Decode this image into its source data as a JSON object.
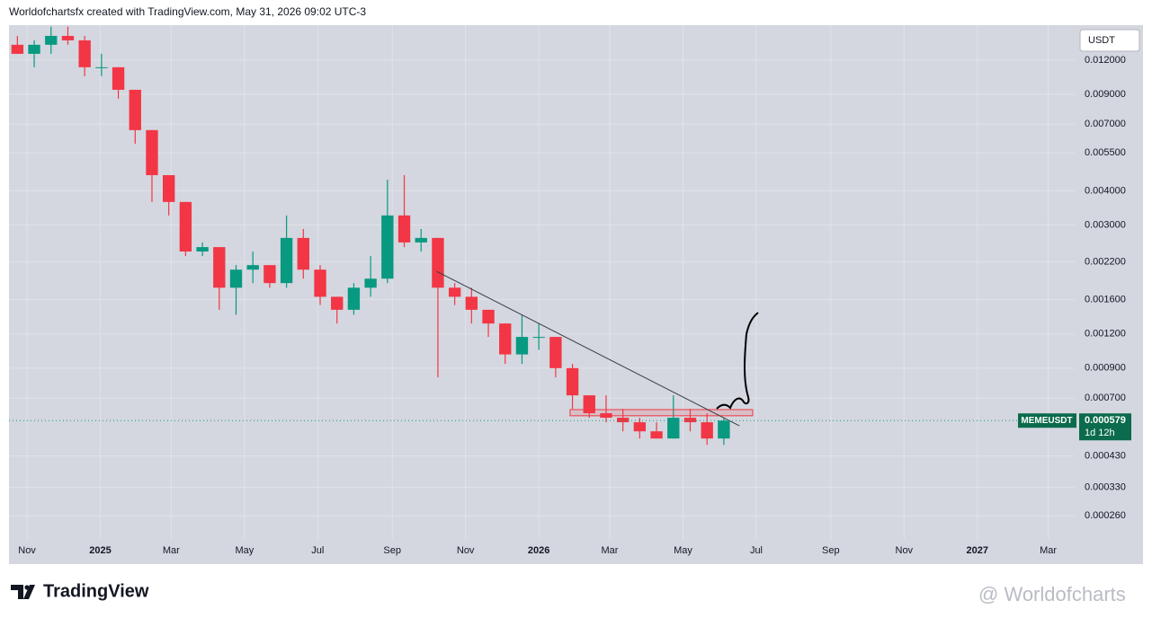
{
  "header": {
    "credit": "Worldofchartsfx created with TradingView.com, May 31, 2026 09:02 UTC-3"
  },
  "footer": {
    "brand": "TradingView",
    "watermark": "@ Worldofcharts"
  },
  "chart_data": {
    "type": "candlestick",
    "log_scale": true,
    "grid": true,
    "currency": "USDT",
    "up_color": "#089981",
    "down_color": "#f23645",
    "xlim": [
      "2024-10-17",
      "2027-03-23"
    ],
    "xticks": [
      {
        "value": "2024-11-01",
        "label": "Nov"
      },
      {
        "value": "2025-01-01",
        "label": "2025"
      },
      {
        "value": "2025-03-01",
        "label": "Mar"
      },
      {
        "value": "2025-05-01",
        "label": "May"
      },
      {
        "value": "2025-07-01",
        "label": "Jul"
      },
      {
        "value": "2025-09-01",
        "label": "Sep"
      },
      {
        "value": "2025-11-01",
        "label": "Nov"
      },
      {
        "value": "2026-01-01",
        "label": "2026"
      },
      {
        "value": "2026-03-01",
        "label": "Mar"
      },
      {
        "value": "2026-05-01",
        "label": "May"
      },
      {
        "value": "2026-07-01",
        "label": "Jul"
      },
      {
        "value": "2026-09-01",
        "label": "Sep"
      },
      {
        "value": "2026-11-01",
        "label": "Nov"
      },
      {
        "value": "2027-01-01",
        "label": "2027"
      },
      {
        "value": "2027-03-01",
        "label": "Mar"
      }
    ],
    "ylim": [
      0.000214,
      0.0161
    ],
    "yticks": [
      {
        "value": 0.012,
        "label": "0.012000"
      },
      {
        "value": 0.009,
        "label": "0.009000"
      },
      {
        "value": 0.007,
        "label": "0.007000"
      },
      {
        "value": 0.0055,
        "label": "0.005500"
      },
      {
        "value": 0.004,
        "label": "0.004000"
      },
      {
        "value": 0.003,
        "label": "0.003000"
      },
      {
        "value": 0.0022,
        "label": "0.002200"
      },
      {
        "value": 0.0016,
        "label": "0.001600"
      },
      {
        "value": 0.0012,
        "label": "0.001200"
      },
      {
        "value": 0.0009,
        "label": "0.000900"
      },
      {
        "value": 0.0007,
        "label": "0.000700"
      },
      {
        "value": 0.00043,
        "label": "0.000430"
      },
      {
        "value": 0.00033,
        "label": "0.000330"
      },
      {
        "value": 0.00026,
        "label": "0.000260"
      }
    ],
    "series": [
      {
        "name": "MEMEUSDT",
        "x": [
          "2024-10-17",
          "2024-10-31",
          "2024-11-14",
          "2024-11-28",
          "2024-12-12",
          "2024-12-26",
          "2025-01-09",
          "2025-01-23",
          "2025-02-06",
          "2025-02-20",
          "2025-03-06",
          "2025-03-20",
          "2025-04-03",
          "2025-04-17",
          "2025-05-01",
          "2025-05-15",
          "2025-05-29",
          "2025-06-12",
          "2025-06-26",
          "2025-07-10",
          "2025-07-24",
          "2025-08-07",
          "2025-08-21",
          "2025-09-04",
          "2025-09-18",
          "2025-10-02",
          "2025-10-16",
          "2025-10-30",
          "2025-11-13",
          "2025-11-27",
          "2025-12-11",
          "2025-12-25",
          "2026-01-08",
          "2026-01-22",
          "2026-02-05",
          "2026-02-19",
          "2026-03-05",
          "2026-03-19",
          "2026-04-02",
          "2026-04-16",
          "2026-04-30",
          "2026-05-14",
          "2026-05-28"
        ],
        "open": [
          0.01365,
          0.01265,
          0.01365,
          0.01471,
          0.01417,
          0.0113,
          0.0113,
          0.00935,
          0.00666,
          0.00456,
          0.00364,
          0.0024,
          0.00249,
          0.00177,
          0.00206,
          0.00214,
          0.00184,
          0.00269,
          0.00206,
          0.00164,
          0.00147,
          0.00177,
          0.00191,
          0.00325,
          0.00259,
          0.00269,
          0.00177,
          0.00164,
          0.00147,
          0.00131,
          0.00101,
          0.00117,
          0.00117,
          0.0009,
          0.000716,
          0.000616,
          0.000593,
          0.000571,
          0.000529,
          0.000498,
          0.000593,
          0.000571,
          0.000498
        ],
        "high": [
          0.01471,
          0.01417,
          0.0159,
          0.0159,
          0.01471,
          0.01265,
          0.0113,
          0.00935,
          0.00666,
          0.00456,
          0.00364,
          0.00259,
          0.00249,
          0.00214,
          0.0024,
          0.00214,
          0.00325,
          0.0029,
          0.00214,
          0.00164,
          0.00184,
          0.00231,
          0.00439,
          0.00456,
          0.0029,
          0.00269,
          0.00184,
          0.00177,
          0.00147,
          0.00131,
          0.00141,
          0.00131,
          0.00117,
          0.000933,
          0.000716,
          0.000716,
          0.000639,
          0.000593,
          0.000571,
          0.000716,
          0.000639,
          0.000616,
          0.000593
        ],
        "low": [
          0.01265,
          0.0113,
          0.01265,
          0.01365,
          0.01048,
          0.01048,
          0.00867,
          0.00594,
          0.00364,
          0.00325,
          0.00231,
          0.00231,
          0.00147,
          0.00141,
          0.00184,
          0.00177,
          0.00177,
          0.00191,
          0.00153,
          0.00131,
          0.00141,
          0.00164,
          0.00184,
          0.00249,
          0.0024,
          0.000833,
          0.00153,
          0.00131,
          0.00117,
          0.000933,
          0.000933,
          0.00105,
          0.000833,
          0.000639,
          0.000593,
          0.000571,
          0.000529,
          0.000498,
          0.000498,
          0.000498,
          0.000529,
          0.000472,
          0.000472
        ],
        "close": [
          0.01265,
          0.01365,
          0.01471,
          0.01417,
          0.0113,
          0.0113,
          0.00935,
          0.00666,
          0.00456,
          0.00364,
          0.0024,
          0.00249,
          0.00177,
          0.00206,
          0.00214,
          0.00184,
          0.00269,
          0.00206,
          0.00164,
          0.00147,
          0.00177,
          0.00191,
          0.00325,
          0.00259,
          0.00269,
          0.00177,
          0.00164,
          0.00147,
          0.00131,
          0.00101,
          0.00117,
          0.00117,
          0.0009,
          0.000716,
          0.000616,
          0.000593,
          0.000571,
          0.000529,
          0.000498,
          0.000593,
          0.000571,
          0.000498,
          0.000579
        ]
      }
    ],
    "last_price": {
      "value": 0.000579,
      "label": "0.000579",
      "countdown": "1d 12h"
    },
    "trendline": {
      "x": [
        "2025-10-08",
        "2026-06-17"
      ],
      "y": [
        0.00203,
        0.000554
      ]
    },
    "zone": {
      "x": [
        "2026-01-27",
        "2026-06-28"
      ],
      "y": [
        0.000603,
        0.000635
      ]
    }
  }
}
